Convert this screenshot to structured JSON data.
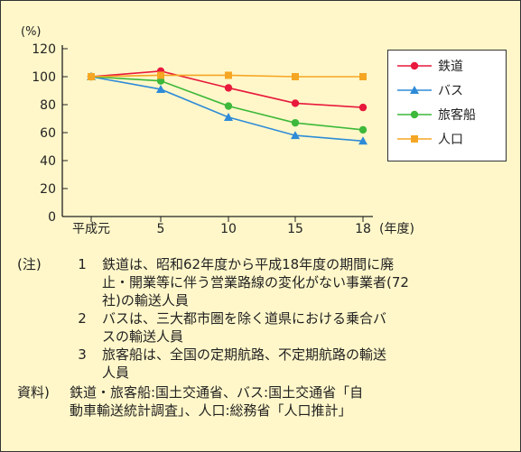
{
  "chart_data": {
    "type": "line",
    "yunit": "(%)",
    "xunit": "(年度)",
    "categories": [
      "平成元",
      "5",
      "10",
      "15",
      "18"
    ],
    "ylim": [
      0,
      120
    ],
    "yticks": [
      "0",
      "20",
      "40",
      "60",
      "80",
      "100",
      "120"
    ],
    "grid": false,
    "legend_position": "top-right",
    "series": [
      {
        "name": "鉄道",
        "color": "#E8193C",
        "marker": "circle",
        "values": [
          100,
          104,
          92,
          81,
          78
        ]
      },
      {
        "name": "バス",
        "color": "#2E8BD8",
        "marker": "triangle",
        "values": [
          100,
          91,
          71,
          58,
          54
        ]
      },
      {
        "name": "旅客船",
        "color": "#3DB83A",
        "marker": "circle",
        "values": [
          100,
          97,
          79,
          67,
          62
        ]
      },
      {
        "name": "人口",
        "color": "#F5A623",
        "marker": "square",
        "values": [
          100,
          101,
          101,
          100,
          100
        ]
      }
    ]
  },
  "notes": {
    "label": "(注)",
    "items": [
      {
        "num": "1",
        "lines": [
          "鉄道は、昭和62年度から平成18年度の期間に廃",
          "止・開業等に伴う営業路線の変化がない事業者(72",
          "社)の輸送人員"
        ]
      },
      {
        "num": "2",
        "lines": [
          "バスは、三大都市圏を除く道県における乗合バ",
          "スの輸送人員"
        ]
      },
      {
        "num": "3",
        "lines": [
          "旅客船は、全国の定期航路、不定期航路の輸送",
          "人員"
        ]
      }
    ]
  },
  "source": {
    "label": "資料)",
    "lines": [
      "鉄道・旅客船:国土交通省、バス:国土交通省「自",
      "動車輸送統計調査」、人口:総務省「人口推計」"
    ]
  }
}
